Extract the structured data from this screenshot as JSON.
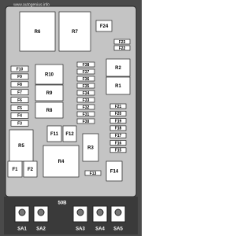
{
  "watermark": "www.autogenius.info",
  "nodes": [
    {
      "label": "R6"
    },
    {
      "label": "R7"
    },
    {
      "label": "F24"
    },
    {
      "label": "F23"
    },
    {
      "label": "F22"
    },
    {
      "label": "F10"
    },
    {
      "label": "F9"
    },
    {
      "label": "F8"
    },
    {
      "label": "F7"
    },
    {
      "label": "F6"
    },
    {
      "label": "F5"
    },
    {
      "label": "F4"
    },
    {
      "label": "F3"
    },
    {
      "label": "R10"
    },
    {
      "label": "R9"
    },
    {
      "label": "R8"
    },
    {
      "label": "F38"
    },
    {
      "label": "F37"
    },
    {
      "label": "F36"
    },
    {
      "label": "F35"
    },
    {
      "label": "F34"
    },
    {
      "label": "F33"
    },
    {
      "label": "F32"
    },
    {
      "label": "F31"
    },
    {
      "label": "F30"
    },
    {
      "label": "R2"
    },
    {
      "label": "R1"
    },
    {
      "label": "F21"
    },
    {
      "label": "F20"
    },
    {
      "label": "F19"
    },
    {
      "label": "F18"
    },
    {
      "label": "F17"
    },
    {
      "label": "F16"
    },
    {
      "label": "F15"
    },
    {
      "label": "R5"
    },
    {
      "label": "F11"
    },
    {
      "label": "F12"
    },
    {
      "label": "R3"
    },
    {
      "label": "R4"
    },
    {
      "label": "F1"
    },
    {
      "label": "F2"
    },
    {
      "label": "F13"
    },
    {
      "label": "F14"
    }
  ],
  "connector_label": "50B",
  "connectors": [
    {
      "label": "SA1"
    },
    {
      "label": "SA2"
    },
    {
      "label": "SA3"
    },
    {
      "label": "SA4"
    },
    {
      "label": "SA5"
    }
  ]
}
